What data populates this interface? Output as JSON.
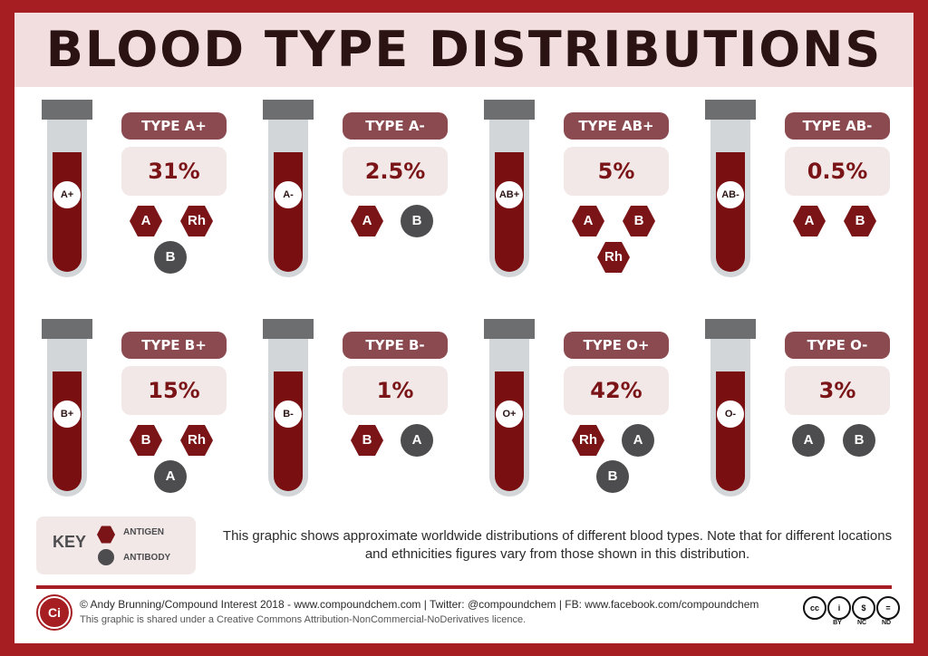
{
  "title": "BLOOD TYPE DISTRIBUTIONS",
  "colors": {
    "frame": "#a61e22",
    "blood": "#7a0f12",
    "antigen": "#7a1417",
    "antibody": "#4d4d4f",
    "label_bg": "#8b4a50"
  },
  "blood_types": [
    {
      "tube": "A+",
      "label": "TYPE A+",
      "percent": "31%",
      "antigens": [
        "A",
        "Rh"
      ],
      "antibodies": [
        "B"
      ]
    },
    {
      "tube": "A-",
      "label": "TYPE A-",
      "percent": "2.5%",
      "antigens": [
        "A"
      ],
      "antibodies": [
        "B"
      ]
    },
    {
      "tube": "AB+",
      "label": "TYPE AB+",
      "percent": "5%",
      "antigens": [
        "A",
        "B",
        "Rh"
      ],
      "antibodies": []
    },
    {
      "tube": "AB-",
      "label": "TYPE AB-",
      "percent": "0.5%",
      "antigens": [
        "A",
        "B"
      ],
      "antibodies": []
    },
    {
      "tube": "B+",
      "label": "TYPE B+",
      "percent": "15%",
      "antigens": [
        "B",
        "Rh"
      ],
      "antibodies": [
        "A"
      ]
    },
    {
      "tube": "B-",
      "label": "TYPE B-",
      "percent": "1%",
      "antigens": [
        "B"
      ],
      "antibodies": [
        "A"
      ]
    },
    {
      "tube": "O+",
      "label": "TYPE O+",
      "percent": "42%",
      "antigens": [
        "Rh"
      ],
      "antibodies": [
        "A",
        "B"
      ]
    },
    {
      "tube": "O-",
      "label": "TYPE O-",
      "percent": "3%",
      "antigens": [],
      "antibodies": [
        "A",
        "B"
      ]
    }
  ],
  "key": {
    "title": "KEY",
    "antigen": "ANTIGEN",
    "antibody": "ANTIBODY"
  },
  "note": "This graphic shows approximate worldwide distributions of different blood types. Note that for different locations and ethnicities figures vary from those shown in this distribution.",
  "footer": {
    "logo": "Ci",
    "credit": "© Andy Brunning/Compound Interest 2018 - www.compoundchem.com | Twitter: @compoundchem | FB: www.facebook.com/compoundchem",
    "licence": "This graphic is shared under a Creative Commons Attribution-NonCommercial-NoDerivatives licence.",
    "cc": {
      "cc": "cc",
      "by": "BY",
      "nc": "NC",
      "nd": "ND",
      "by_icon": "i",
      "nc_icon": "$",
      "nd_icon": "="
    }
  }
}
